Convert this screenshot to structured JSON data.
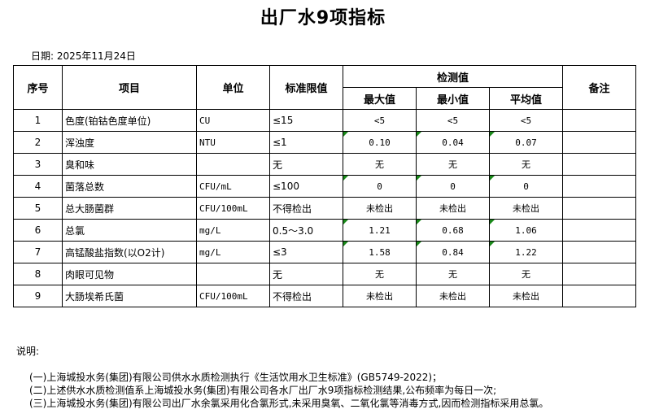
{
  "title": "出厂水9项指标",
  "date": "日期: 2025年11月24日",
  "headers": {
    "seq": "序号",
    "item": "项目",
    "unit": "单位",
    "limit": "标准限值",
    "measured": "检测值",
    "max": "最大值",
    "min": "最小值",
    "avg": "平均值",
    "remark": "备注"
  },
  "rows": [
    {
      "seq": "1",
      "item": "色度(铂钴色度单位)",
      "unit": "CU",
      "limit": "≤15",
      "max": "<5",
      "min": "<5",
      "avg": "<5",
      "remark": "",
      "flag": false
    },
    {
      "seq": "2",
      "item": "浑浊度",
      "unit": "NTU",
      "limit": "≤1",
      "max": "0.10",
      "min": "0.04",
      "avg": "0.07",
      "remark": "",
      "flag": true
    },
    {
      "seq": "3",
      "item": "臭和味",
      "unit": "",
      "limit": "无",
      "max": "无",
      "min": "无",
      "avg": "无",
      "remark": "",
      "flag": false
    },
    {
      "seq": "4",
      "item": "菌落总数",
      "unit": "CFU/mL",
      "limit": "≤100",
      "max": "0",
      "min": "0",
      "avg": "0",
      "remark": "",
      "flag": true
    },
    {
      "seq": "5",
      "item": "总大肠菌群",
      "unit": "CFU/100mL",
      "limit": "不得检出",
      "max": "未检出",
      "min": "未检出",
      "avg": "未检出",
      "remark": "",
      "flag": false
    },
    {
      "seq": "6",
      "item": "总氯",
      "unit": "mg/L",
      "limit": "0.5～3.0",
      "max": "1.21",
      "min": "0.68",
      "avg": "1.06",
      "remark": "",
      "flag": true
    },
    {
      "seq": "7",
      "item": "高锰酸盐指数(以O2计)",
      "unit": "mg/L",
      "limit": "≤3",
      "max": "1.58",
      "min": "0.84",
      "avg": "1.22",
      "remark": "",
      "flag": true
    },
    {
      "seq": "8",
      "item": "肉眼可见物",
      "unit": "",
      "limit": "无",
      "max": "无",
      "min": "无",
      "avg": "无",
      "remark": "",
      "flag": false
    },
    {
      "seq": "9",
      "item": "大肠埃希氏菌",
      "unit": "CFU/100mL",
      "limit": "不得检出",
      "max": "未检出",
      "min": "未检出",
      "avg": "未检出",
      "remark": "",
      "flag": false
    }
  ],
  "notes": {
    "label": "说明:",
    "items": [
      "(一)上海城投水务(集团)有限公司供水水质检测执行《生活饮用水卫生标准》(GB5749-2022)；",
      "(二)上述供水水质检测值系上海城投水务(集团)有限公司各水厂出厂水9项指标检测结果,公布频率为每日一次;",
      "(三)上海城投水务(集团)有限公司出厂水余氯采用化合氯形式,未采用臭氧、二氧化氯等消毒方式,因而检测指标采用总氯。"
    ]
  }
}
